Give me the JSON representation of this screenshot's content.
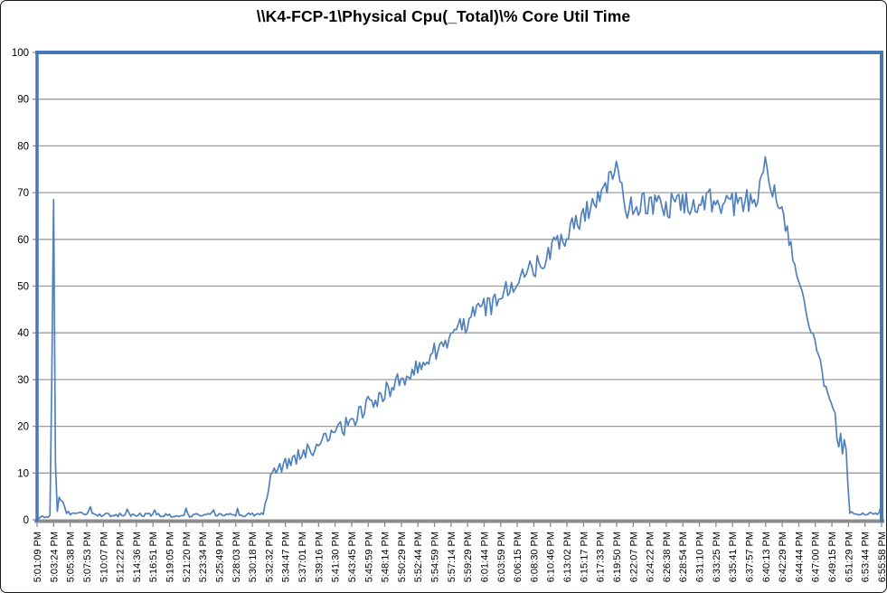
{
  "chart_data": {
    "type": "line",
    "title": "\\\\K4-FCP-1\\Physical Cpu(_Total)\\% Core Util Time",
    "xlabel": "",
    "ylabel": "",
    "ylim": [
      0,
      100
    ],
    "y_ticks": [
      0,
      10,
      20,
      30,
      40,
      50,
      60,
      70,
      80,
      90,
      100
    ],
    "grid": "horizontal",
    "legend_position": "none",
    "series_name": "% Core Util Time",
    "line_color": "#4F81BD",
    "plot_border_color": "#4878B4",
    "axis_color": "#8C8C8C",
    "gridline_color": "#9C9C9C",
    "label_color": "#000000",
    "sample_interval_s": 15,
    "duration_s": 6889,
    "x_tick_labels": [
      "5:01:09 PM",
      "5:03:24 PM",
      "5:05:38 PM",
      "5:07:53 PM",
      "5:10:07 PM",
      "5:12:22 PM",
      "5:14:36 PM",
      "5:16:51 PM",
      "5:19:05 PM",
      "5:21:20 PM",
      "5:23:34 PM",
      "5:25:49 PM",
      "5:28:03 PM",
      "5:30:18 PM",
      "5:32:32 PM",
      "5:34:47 PM",
      "5:37:01 PM",
      "5:39:16 PM",
      "5:41:30 PM",
      "5:43:45 PM",
      "5:45:59 PM",
      "5:48:14 PM",
      "5:50:29 PM",
      "5:52:44 PM",
      "5:54:59 PM",
      "5:57:14 PM",
      "5:59:29 PM",
      "6:01:44 PM",
      "6:03:59 PM",
      "6:06:15 PM",
      "6:08:30 PM",
      "6:10:46 PM",
      "6:13:02 PM",
      "6:15:17 PM",
      "6:17:33 PM",
      "6:19:50 PM",
      "6:22:07 PM",
      "6:24:22 PM",
      "6:26:38 PM",
      "6:28:54 PM",
      "6:31:10 PM",
      "6:33:25 PM",
      "6:35:41 PM",
      "6:37:57 PM",
      "6:40:13 PM",
      "6:42:29 PM",
      "6:44:44 PM",
      "6:47:00 PM",
      "6:49:15 PM",
      "6:51:29 PM",
      "6:53:44 PM",
      "6:55:58 PM"
    ],
    "anchors_format": "[seconds_from_start, base_value_percent, noise_half_amplitude]",
    "anchors": [
      [
        0,
        0.4,
        0.2
      ],
      [
        90,
        0.8,
        0.3
      ],
      [
        105,
        1,
        0
      ],
      [
        120,
        30,
        0
      ],
      [
        135,
        68.5,
        0
      ],
      [
        150,
        12,
        0
      ],
      [
        165,
        2,
        0.5
      ],
      [
        180,
        4.2,
        0.8
      ],
      [
        210,
        4.6,
        0.9
      ],
      [
        240,
        1.6,
        0.5
      ],
      [
        300,
        1.1,
        0.4
      ],
      [
        420,
        1.4,
        0.5
      ],
      [
        435,
        2.8,
        0
      ],
      [
        450,
        1.1,
        0.4
      ],
      [
        600,
        1,
        0.4
      ],
      [
        720,
        1.1,
        0.4
      ],
      [
        737,
        2.4,
        0
      ],
      [
        755,
        1,
        0.4
      ],
      [
        940,
        1,
        0.4
      ],
      [
        958,
        2.3,
        0
      ],
      [
        975,
        1,
        0.4
      ],
      [
        1100,
        0.9,
        0.4
      ],
      [
        1200,
        1,
        0.4
      ],
      [
        1216,
        2.6,
        0
      ],
      [
        1232,
        1,
        0.4
      ],
      [
        1420,
        1,
        0.4
      ],
      [
        1437,
        2.4,
        0
      ],
      [
        1455,
        1,
        0.4
      ],
      [
        1620,
        1.1,
        0.4
      ],
      [
        1636,
        2.5,
        0
      ],
      [
        1652,
        1.1,
        0.4
      ],
      [
        1790,
        1.1,
        0.4
      ],
      [
        1845,
        1.5,
        0.5
      ],
      [
        1875,
        5,
        1
      ],
      [
        1905,
        9.8,
        1
      ],
      [
        1950,
        11,
        1.2
      ],
      [
        2100,
        12.8,
        1.6
      ],
      [
        2250,
        15.5,
        1.8
      ],
      [
        2400,
        18,
        2
      ],
      [
        2550,
        21,
        2
      ],
      [
        2700,
        24.5,
        2
      ],
      [
        2850,
        27.5,
        2
      ],
      [
        3000,
        30.5,
        2
      ],
      [
        3150,
        34,
        2.2
      ],
      [
        3300,
        37.5,
        2.2
      ],
      [
        3450,
        41,
        2.3
      ],
      [
        3600,
        44.5,
        2.3
      ],
      [
        3750,
        47,
        2.5
      ],
      [
        3900,
        50.5,
        2.5
      ],
      [
        4050,
        53.5,
        2.5
      ],
      [
        4200,
        58,
        2.5
      ],
      [
        4350,
        62,
        2.5
      ],
      [
        4500,
        66,
        2.5
      ],
      [
        4620,
        70.5,
        2.2
      ],
      [
        4700,
        74.5,
        1.8
      ],
      [
        4730,
        76.3,
        1
      ],
      [
        4770,
        71.5,
        2
      ],
      [
        4810,
        66.5,
        2.5
      ],
      [
        4900,
        67,
        3
      ],
      [
        5100,
        67.5,
        3
      ],
      [
        5300,
        67.5,
        3
      ],
      [
        5500,
        68,
        3
      ],
      [
        5700,
        68,
        3
      ],
      [
        5870,
        69,
        2.4
      ],
      [
        5925,
        74,
        1
      ],
      [
        5945,
        78.3,
        0.3
      ],
      [
        5975,
        71.5,
        1.5
      ],
      [
        6040,
        69,
        2
      ],
      [
        6075,
        66,
        1.5
      ],
      [
        6120,
        61.5,
        1.5
      ],
      [
        6190,
        53.5,
        1.5
      ],
      [
        6250,
        47.5,
        1.5
      ],
      [
        6310,
        41.5,
        1.5
      ],
      [
        6365,
        35.5,
        1.5
      ],
      [
        6420,
        29,
        1.8
      ],
      [
        6470,
        24,
        2
      ],
      [
        6510,
        20.5,
        2.5
      ],
      [
        6550,
        17.5,
        3
      ],
      [
        6590,
        15.5,
        3
      ],
      [
        6605,
        13,
        1.5
      ],
      [
        6625,
        1.5,
        0.3
      ],
      [
        6700,
        1.2,
        0.3
      ],
      [
        6800,
        1.3,
        0.4
      ],
      [
        6865,
        1.6,
        0.5
      ],
      [
        6889,
        3.2,
        0
      ]
    ]
  }
}
